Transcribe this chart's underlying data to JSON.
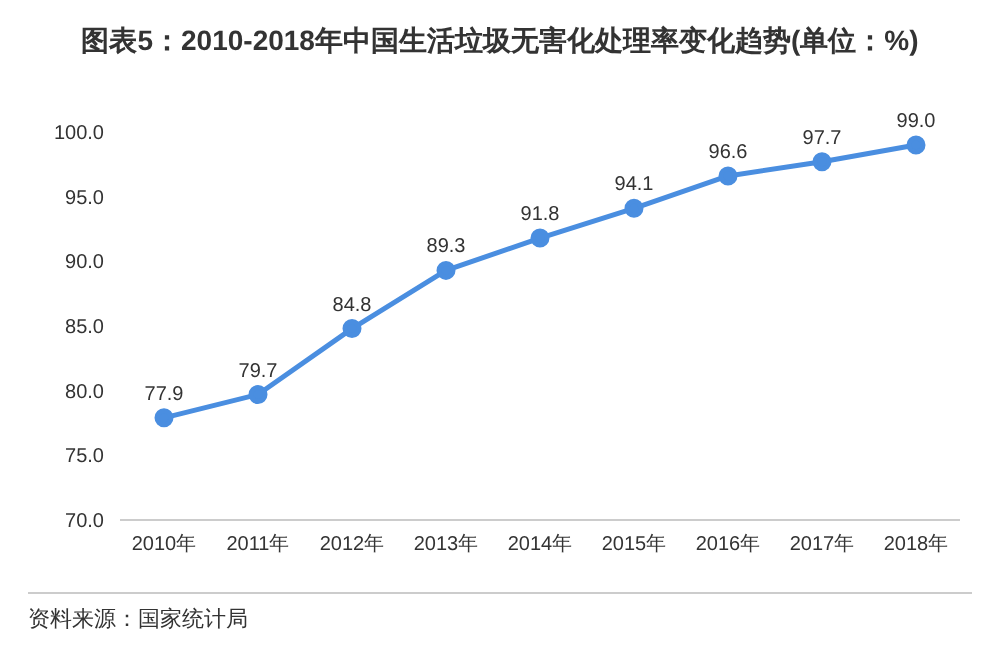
{
  "chart_data": {
    "type": "line",
    "title": "图表5：2010-2018年中国生活垃圾无害化处理率变化趋势(单位：%)",
    "categories": [
      "2010年",
      "2011年",
      "2012年",
      "2013年",
      "2014年",
      "2015年",
      "2016年",
      "2017年",
      "2018年"
    ],
    "series": [
      {
        "color": "#4a8ee0",
        "values": [
          77.9,
          79.7,
          84.8,
          89.3,
          91.8,
          94.1,
          96.6,
          97.7,
          99.0
        ],
        "value_labels": [
          "77.9",
          "79.7",
          "84.8",
          "89.3",
          "91.8",
          "94.1",
          "96.6",
          "97.7",
          "99.0"
        ]
      }
    ],
    "ylim": [
      70,
      100
    ],
    "yticks": [
      {
        "value": 70,
        "label": "70.0"
      },
      {
        "value": 75,
        "label": "75.0"
      },
      {
        "value": 80,
        "label": "80.0"
      },
      {
        "value": 85,
        "label": "85.0"
      },
      {
        "value": 90,
        "label": "90.0"
      },
      {
        "value": 95,
        "label": "95.0"
      },
      {
        "value": 100,
        "label": "100.0"
      }
    ],
    "grid": false,
    "marker": "circle",
    "line_style": "solid",
    "annotations": [
      "资料来源：国家统计局"
    ]
  }
}
